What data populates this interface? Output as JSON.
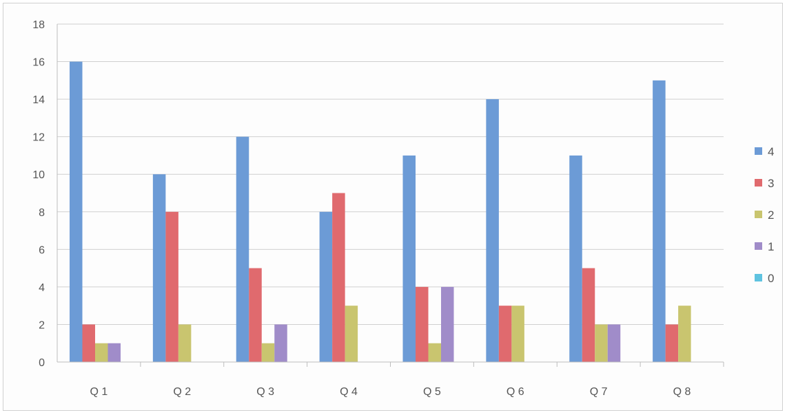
{
  "chart_data": {
    "type": "bar",
    "categories": [
      "Q 1",
      "Q 2",
      "Q 3",
      "Q 4",
      "Q 5",
      "Q 6",
      "Q 7",
      "Q 8"
    ],
    "series": [
      {
        "name": "4",
        "color": "#6c9bd6",
        "values": [
          16,
          10,
          12,
          8,
          11,
          14,
          11,
          15
        ]
      },
      {
        "name": "3",
        "color": "#e06a6e",
        "values": [
          2,
          8,
          5,
          9,
          4,
          3,
          5,
          2
        ]
      },
      {
        "name": "2",
        "color": "#c9c56f",
        "values": [
          1,
          2,
          1,
          3,
          1,
          3,
          2,
          3
        ]
      },
      {
        "name": "1",
        "color": "#a08cc9",
        "values": [
          1,
          0,
          2,
          0,
          4,
          0,
          2,
          0
        ]
      },
      {
        "name": "0",
        "color": "#5fc3e0",
        "values": [
          0,
          0,
          0,
          0,
          0,
          0,
          0,
          0
        ]
      }
    ],
    "yticks": [
      "0",
      "2",
      "4",
      "6",
      "8",
      "10",
      "12",
      "14",
      "16",
      "18"
    ],
    "ylim": [
      0,
      18
    ],
    "grid": true,
    "legend_position": "right",
    "title": "",
    "xlabel": "",
    "ylabel": ""
  }
}
